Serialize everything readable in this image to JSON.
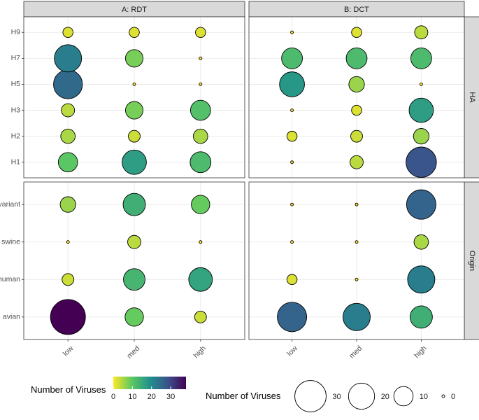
{
  "chart_data": {
    "type": "scatter",
    "subtype": "faceted bubble grid",
    "facet_columns": [
      "A: RDT",
      "B: DCT"
    ],
    "facet_rows": [
      "HA",
      "Origin"
    ],
    "x_categories": [
      "low",
      "med",
      "high"
    ],
    "y_categories": {
      "HA": [
        "H1",
        "H2",
        "H3",
        "H5",
        "H7",
        "H9"
      ],
      "Origin": [
        "avian",
        "human",
        "swine",
        "variant"
      ]
    },
    "data": {
      "A: RDT": {
        "HA": {
          "H9": [
            2,
            2,
            2
          ],
          "H7": [
            22,
            8,
            0
          ],
          "H5": [
            25,
            0,
            0
          ],
          "H3": [
            4,
            8,
            11
          ],
          "H2": [
            5,
            3,
            5
          ],
          "H1": [
            10,
            17,
            12
          ]
        },
        "Origin": {
          "variant": [
            6,
            14,
            9
          ],
          "swine": [
            0,
            4,
            0
          ],
          "human": [
            3,
            13,
            16
          ],
          "avian": [
            38,
            9,
            3
          ]
        }
      },
      "B: DCT": {
        "HA": {
          "H9": [
            0,
            2,
            4
          ],
          "H7": [
            12,
            12,
            12
          ],
          "H5": [
            18,
            6,
            0
          ],
          "H3": [
            0,
            2,
            17
          ],
          "H2": [
            2,
            3,
            6
          ],
          "H1": [
            0,
            4,
            28
          ]
        },
        "Origin": {
          "variant": [
            0,
            0,
            26
          ],
          "swine": [
            0,
            0,
            5
          ],
          "human": [
            2,
            0,
            22
          ],
          "avian": [
            26,
            22,
            14
          ]
        }
      }
    },
    "color_legend": {
      "title": "Number of Viruses",
      "ticks": [
        0,
        10,
        20,
        30
      ],
      "range": [
        0,
        38
      ]
    },
    "size_legend": {
      "title": "Number of Viruses",
      "ticks": [
        30,
        20,
        10,
        0
      ]
    },
    "grid": true
  }
}
